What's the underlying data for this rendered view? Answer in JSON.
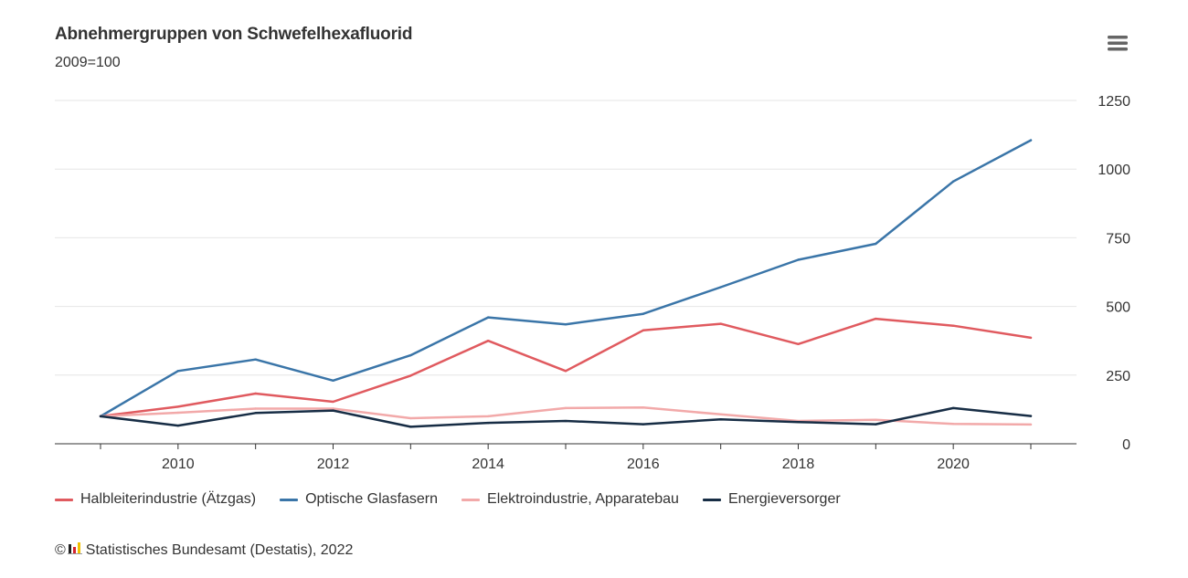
{
  "header": {
    "title": "Abnehmergruppen von Schwefelhexafluorid",
    "subtitle": "2009=100",
    "menu_icon": "hamburger-menu-icon"
  },
  "credits": {
    "copyright_symbol": "©",
    "logo_icon": "destatis-logo-icon",
    "text": "Statistisches Bundesamt (Destatis), 2022"
  },
  "chart_data": {
    "type": "line",
    "title": "Abnehmergruppen von Schwefelhexafluorid",
    "subtitle": "2009=100",
    "xlabel": "",
    "ylabel": "",
    "x": [
      2009,
      2010,
      2011,
      2012,
      2013,
      2014,
      2015,
      2016,
      2017,
      2018,
      2019,
      2020,
      2021
    ],
    "x_tick_labels": [
      "2010",
      "2012",
      "2014",
      "2016",
      "2018",
      "2020"
    ],
    "y_tick_labels": [
      "0",
      "250",
      "500",
      "750",
      "1000",
      "1250"
    ],
    "xlim": [
      2009,
      2021
    ],
    "ylim": [
      0,
      1250
    ],
    "y_axis_side": "right",
    "grid": true,
    "legend_position": "bottom",
    "series": [
      {
        "name": "Halbleiterindustrie (Ätzgas)",
        "color": "#e05a5f",
        "values": [
          100,
          135,
          183,
          153,
          248,
          375,
          265,
          413,
          437,
          363,
          455,
          430,
          386
        ]
      },
      {
        "name": "Optische Glasfasern",
        "color": "#3a75a8",
        "values": [
          100,
          265,
          307,
          230,
          322,
          460,
          435,
          473,
          570,
          670,
          728,
          955,
          1105
        ]
      },
      {
        "name": "Elektroindustrie, Apparatebau",
        "color": "#f2a9a9",
        "values": [
          100,
          113,
          128,
          128,
          93,
          100,
          130,
          132,
          107,
          83,
          87,
          72,
          70
        ]
      },
      {
        "name": "Energieversorger",
        "color": "#172d45",
        "values": [
          100,
          66,
          112,
          121,
          62,
          76,
          83,
          71,
          89,
          79,
          71,
          130,
          101
        ]
      }
    ]
  }
}
